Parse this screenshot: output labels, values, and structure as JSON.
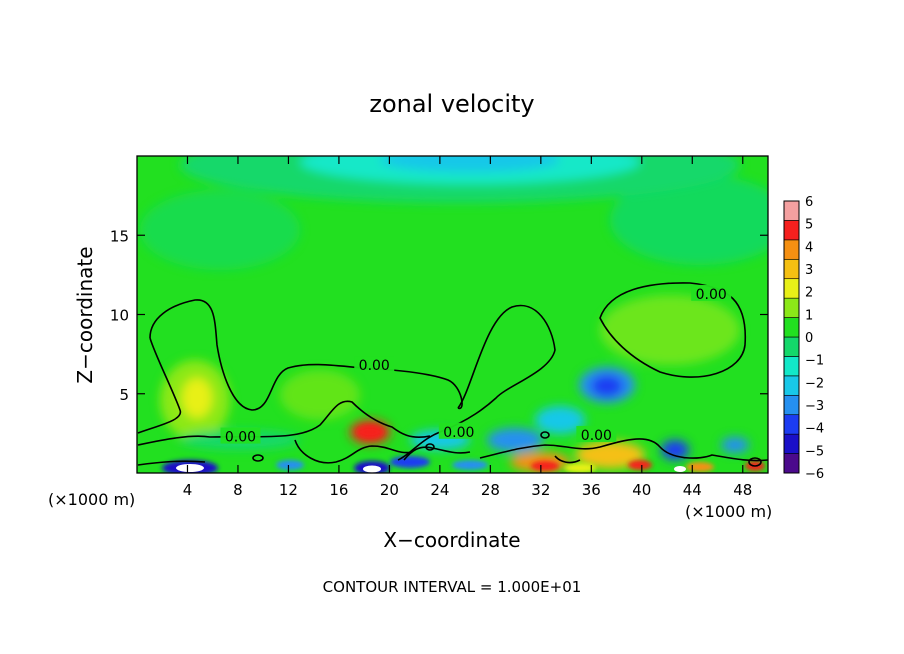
{
  "chart_data": {
    "type": "heatmap",
    "title": "zonal velocity",
    "xlabel": "X−coordinate",
    "ylabel": "Z−coordinate",
    "x_unit": "(×1000 m)",
    "x_unit_right": "(×1000 m)",
    "footer": "CONTOUR INTERVAL = 1.000E+01",
    "xlim": [
      0,
      50
    ],
    "ylim": [
      0,
      20
    ],
    "x_ticks": [
      "4",
      "8",
      "12",
      "16",
      "20",
      "24",
      "28",
      "32",
      "36",
      "40",
      "44",
      "48"
    ],
    "x_tick_values": [
      4,
      8,
      12,
      16,
      20,
      24,
      28,
      32,
      36,
      40,
      44,
      48
    ],
    "y_ticks": [
      "5",
      "10",
      "15"
    ],
    "y_tick_values": [
      5,
      10,
      15
    ],
    "colorbar": {
      "min": -6,
      "max": 6,
      "labels": [
        "6",
        "5",
        "4",
        "3",
        "2",
        "1",
        "0",
        "−1",
        "−2",
        "−3",
        "−4",
        "−5",
        "−6"
      ],
      "colors": [
        "#4b0a8c",
        "#1a10c8",
        "#1c3cf2",
        "#2590f0",
        "#18c8e8",
        "#12e8c8",
        "#14d86a",
        "#22e020",
        "#8ce818",
        "#e8f018",
        "#f5c012",
        "#f59012",
        "#f5201e",
        "#f4a0a0"
      ]
    },
    "contour_labels": [
      {
        "text": "0.00",
        "x": 18.8,
        "y": 6.8
      },
      {
        "text": "0.00",
        "x": 8.2,
        "y": 2.3
      },
      {
        "text": "0.00",
        "x": 25.5,
        "y": 2.6
      },
      {
        "text": "0.00",
        "x": 36.4,
        "y": 2.4
      },
      {
        "text": "0.00",
        "x": 45.5,
        "y": 11.3
      }
    ]
  }
}
